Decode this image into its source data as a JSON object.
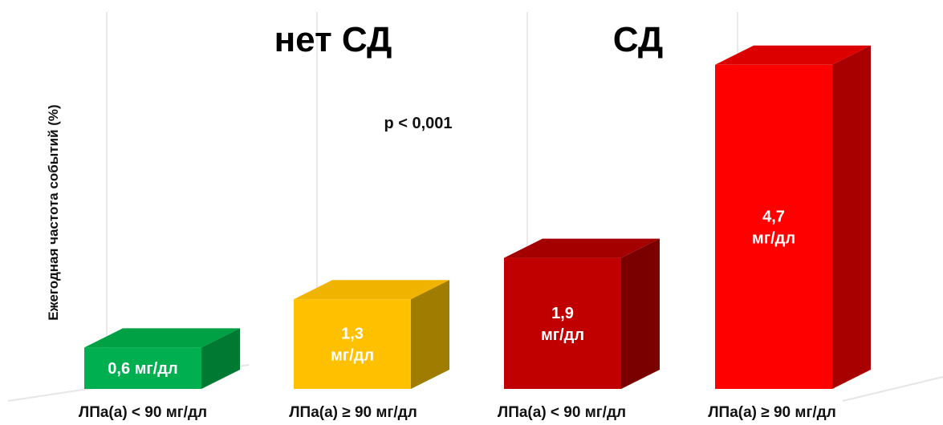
{
  "chart_data": {
    "type": "bar",
    "style": "3d",
    "ylabel": "Ежегодная частота событий (%)",
    "xlabel": "",
    "title": "",
    "ylim": [
      0,
      5
    ],
    "grid": true,
    "legend": "none",
    "categories": [
      "ЛПа(а) < 90 мг/дл",
      "ЛПа(а) ≥ 90 мг/дл",
      "ЛПа(а) < 90 мг/дл",
      "ЛПа(а) ≥ 90 мг/дл"
    ],
    "groups": [
      {
        "name": "нет СД",
        "category_indices": [
          0,
          1
        ]
      },
      {
        "name": "СД",
        "category_indices": [
          2,
          3
        ]
      }
    ],
    "values": [
      0.6,
      1.3,
      1.9,
      4.7
    ],
    "data_labels": [
      [
        "0,6 мг/дл"
      ],
      [
        "1,3",
        "мг/дл"
      ],
      [
        "1,9",
        "мг/дл"
      ],
      [
        "4,7",
        "мг/дл"
      ]
    ],
    "colors": {
      "front": [
        "#00b050",
        "#ffc000",
        "#c00000",
        "#ff0000"
      ],
      "top": [
        "#00a044",
        "#f0b400",
        "#a50000",
        "#dd0000"
      ],
      "side": [
        "#007a33",
        "#a07c00",
        "#7a0000",
        "#a80000"
      ]
    },
    "annotations": [
      "p < 0,001"
    ]
  }
}
